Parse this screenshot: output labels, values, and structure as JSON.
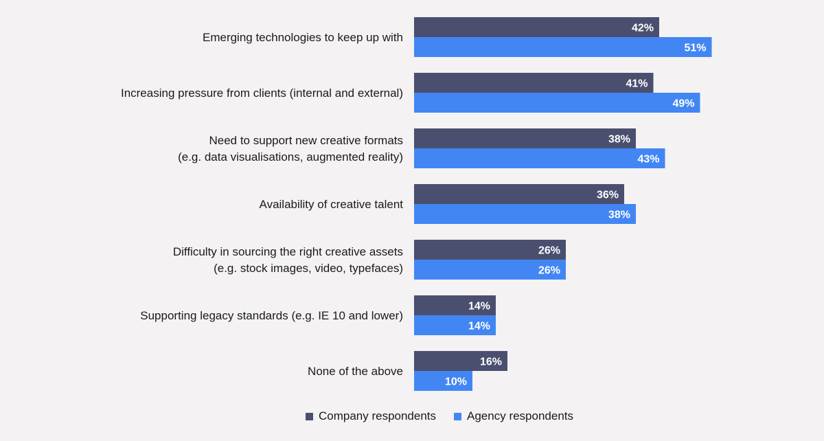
{
  "colors": {
    "company": "#4b4f6f",
    "agency": "#4286f4",
    "background": "#f4f2f3"
  },
  "chart_data": {
    "type": "bar",
    "orientation": "horizontal",
    "categories": [
      [
        "Emerging technologies to keep up with"
      ],
      [
        "Increasing pressure from clients (internal and external)"
      ],
      [
        "Need to support new creative formats",
        "(e.g. data visualisations, augmented reality)"
      ],
      [
        "Availability of creative talent"
      ],
      [
        "Difficulty in sourcing the right creative assets",
        "(e.g. stock images, video, typefaces)"
      ],
      [
        "Supporting legacy standards (e.g. IE 10 and lower)"
      ],
      [
        "None of the above"
      ]
    ],
    "series": [
      {
        "name": "Company respondents",
        "values": [
          42,
          41,
          38,
          36,
          26,
          14,
          16
        ]
      },
      {
        "name": "Agency respondents",
        "values": [
          51,
          49,
          43,
          38,
          26,
          14,
          10
        ]
      }
    ],
    "value_labels": {
      "company": [
        "42%",
        "41%",
        "38%",
        "36%",
        "26%",
        "14%",
        "16%"
      ],
      "agency": [
        "51%",
        "49%",
        "43%",
        "38%",
        "26%",
        "14%",
        "10%"
      ]
    },
    "xlim": [
      0,
      60
    ],
    "grid": false,
    "legend_position": "bottom"
  },
  "legend": {
    "company": "Company respondents",
    "agency": "Agency respondents"
  }
}
